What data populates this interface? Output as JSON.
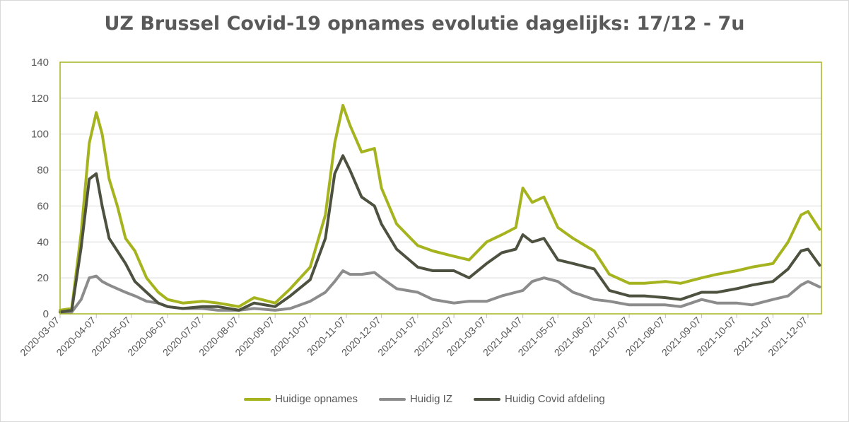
{
  "chart_data": {
    "type": "line",
    "title": "UZ Brussel Covid-19 opnames evolutie dagelijks: 17/12 - 7u",
    "xlabel": "",
    "ylabel": "",
    "ylim": [
      0,
      140
    ],
    "yticks": [
      "0",
      "20",
      "40",
      "60",
      "80",
      "100",
      "120",
      "140"
    ],
    "xticks": [
      "2020-03-07",
      "2020-04-07",
      "2020-05-07",
      "2020-06-07",
      "2020-07-07",
      "2020-08-07",
      "2020-09-07",
      "2020-10-07",
      "2020-11-07",
      "2020-12-07",
      "2021-01-07",
      "2021-02-07",
      "2021-03-07",
      "2021-04-07",
      "2021-05-07",
      "2021-06-07",
      "2021-07-07",
      "2021-08-07",
      "2021-09-07",
      "2021-10-07",
      "2021-11-07",
      "2021-12-07"
    ],
    "grid": true,
    "legend_position": "bottom",
    "x": [
      "2020-03-07",
      "2020-03-17",
      "2020-03-25",
      "2020-04-01",
      "2020-04-07",
      "2020-04-12",
      "2020-04-18",
      "2020-04-25",
      "2020-05-02",
      "2020-05-10",
      "2020-05-20",
      "2020-05-30",
      "2020-06-07",
      "2020-06-20",
      "2020-07-07",
      "2020-07-20",
      "2020-08-07",
      "2020-08-20",
      "2020-09-07",
      "2020-09-20",
      "2020-10-07",
      "2020-10-20",
      "2020-10-28",
      "2020-11-04",
      "2020-11-10",
      "2020-11-20",
      "2020-12-01",
      "2020-12-07",
      "2020-12-20",
      "2021-01-07",
      "2021-01-20",
      "2021-02-07",
      "2021-02-20",
      "2021-03-07",
      "2021-03-20",
      "2021-04-01",
      "2021-04-07",
      "2021-04-15",
      "2021-04-25",
      "2021-05-07",
      "2021-05-20",
      "2021-06-07",
      "2021-06-20",
      "2021-07-07",
      "2021-07-20",
      "2021-08-07",
      "2021-08-20",
      "2021-09-07",
      "2021-09-20",
      "2021-10-07",
      "2021-10-20",
      "2021-11-07",
      "2021-11-20",
      "2021-12-01",
      "2021-12-07",
      "2021-12-17"
    ],
    "series": [
      {
        "name": "Huidige opnames",
        "color": "#a5b41e",
        "values": [
          2,
          3,
          45,
          95,
          112,
          100,
          75,
          60,
          42,
          35,
          20,
          12,
          8,
          6,
          7,
          6,
          4,
          9,
          6,
          14,
          26,
          55,
          95,
          116,
          105,
          90,
          92,
          70,
          50,
          38,
          35,
          32,
          30,
          40,
          44,
          48,
          70,
          62,
          65,
          48,
          42,
          35,
          22,
          17,
          17,
          18,
          17,
          20,
          22,
          24,
          26,
          28,
          40,
          55,
          57,
          47
        ]
      },
      {
        "name": "Huidig IZ",
        "color": "#8c8c8c",
        "values": [
          1,
          1,
          8,
          20,
          21,
          18,
          16,
          14,
          12,
          10,
          7,
          6,
          4,
          3,
          3,
          2,
          2,
          3,
          2,
          3,
          7,
          12,
          18,
          24,
          22,
          22,
          23,
          20,
          14,
          12,
          8,
          6,
          7,
          7,
          10,
          12,
          13,
          18,
          20,
          18,
          12,
          8,
          7,
          5,
          5,
          5,
          4,
          8,
          6,
          6,
          5,
          8,
          10,
          16,
          18,
          15
        ]
      },
      {
        "name": "Huidig Covid afdeling",
        "color": "#4d5240",
        "values": [
          1,
          2,
          37,
          75,
          78,
          60,
          42,
          35,
          28,
          18,
          12,
          6,
          4,
          3,
          4,
          4,
          2,
          6,
          4,
          10,
          19,
          42,
          78,
          88,
          80,
          65,
          60,
          50,
          36,
          26,
          24,
          24,
          20,
          28,
          34,
          36,
          44,
          40,
          42,
          30,
          28,
          25,
          13,
          10,
          10,
          9,
          8,
          12,
          12,
          14,
          16,
          18,
          25,
          35,
          36,
          27
        ]
      }
    ]
  }
}
